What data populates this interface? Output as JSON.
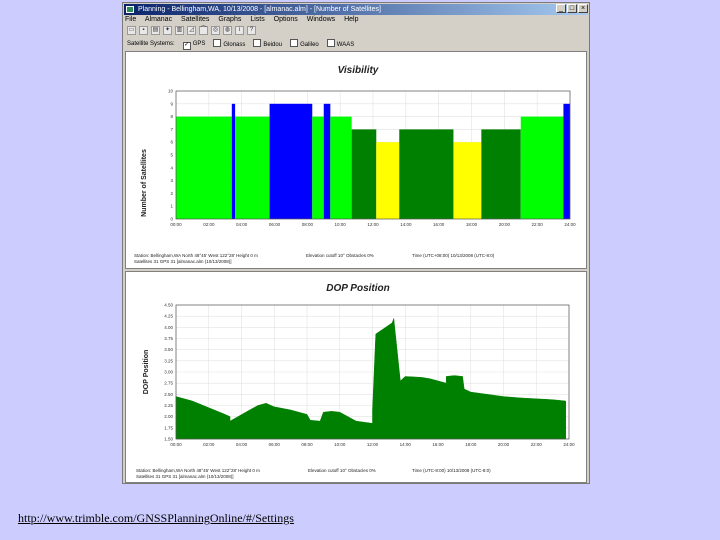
{
  "window": {
    "title": "Planning - Bellingham,WA, 10/13/2008 - [almanac.alm] - [Number of Satellites]"
  },
  "menu": [
    "File",
    "Almanac",
    "Satellites",
    "Graphs",
    "Lists",
    "Options",
    "Windows",
    "Help"
  ],
  "toolbar_icons": [
    "open-icon",
    "save-icon",
    "print-icon",
    "satellite-icon",
    "plot-icon",
    "dop-icon",
    "elevation-icon",
    "skyplot-icon",
    "world-icon",
    "info-icon",
    "help-icon"
  ],
  "filter": {
    "label": "Satellite Systems:",
    "options": [
      {
        "label": "GPS",
        "checked": true
      },
      {
        "label": "Glonass",
        "checked": false
      },
      {
        "label": "Beidou",
        "checked": false
      },
      {
        "label": "Galileo",
        "checked": false
      },
      {
        "label": "WAAS",
        "checked": false
      }
    ]
  },
  "visibility_info": {
    "line1_left": "Station: Bellingham,WA  North 48°45'  West 122°28'  Height 0 m",
    "line1_mid": "Elevation cutoff 10°  Obstacles 0%",
    "line1_right": "Time (UTC+08:00)  10/13/2008 (UTC-8:0)",
    "line2": "Satellites 31  GPS 31  [almanac.alm (10/13/2008)]"
  },
  "dop_info": {
    "line1_left": "Station: Bellingham,WA  North 48°45'  West 122°28'  Height 0 m",
    "line1_mid": "Elevation cutoff 10°  Obstacles 0%",
    "line1_right": "Time (UTC-8:00)  10/13/2008 (UTC-8:0)",
    "line2": "Satellites 31  GPS 31  [almanac.alm (10/13/2008)]"
  },
  "url": "http://www.trimble.com/GNSSPlanningOnline/#/Settings",
  "chart_data": [
    {
      "type": "bar",
      "title": "Visibility",
      "ylabel": "Number of Satellites",
      "xlabel": "",
      "ylim": [
        0,
        10
      ],
      "yticks": [
        0,
        1,
        2,
        3,
        4,
        5,
        6,
        7,
        8,
        9,
        10
      ],
      "xlim": [
        0,
        24
      ],
      "xticks": [
        "00:00",
        "02:00",
        "04:00",
        "06:00",
        "08:00",
        "10:00",
        "12:00",
        "14:00",
        "16:00",
        "18:00",
        "20:00",
        "22:00",
        "24:00"
      ],
      "grid": true,
      "segments": [
        {
          "start": 0,
          "end": 3.4,
          "value": 8
        },
        {
          "start": 3.4,
          "end": 3.6,
          "value": 9
        },
        {
          "start": 3.6,
          "end": 5.7,
          "value": 8
        },
        {
          "start": 5.7,
          "end": 8.3,
          "value": 9
        },
        {
          "start": 8.3,
          "end": 9.0,
          "value": 8
        },
        {
          "start": 9.0,
          "end": 9.4,
          "value": 9
        },
        {
          "start": 9.4,
          "end": 10.7,
          "value": 8
        },
        {
          "start": 10.7,
          "end": 12.2,
          "value": 7
        },
        {
          "start": 12.2,
          "end": 13.6,
          "value": 6
        },
        {
          "start": 13.6,
          "end": 16.9,
          "value": 7
        },
        {
          "start": 16.9,
          "end": 18.6,
          "value": 6
        },
        {
          "start": 18.6,
          "end": 21.0,
          "value": 7
        },
        {
          "start": 21.0,
          "end": 23.6,
          "value": 8
        },
        {
          "start": 23.6,
          "end": 24.0,
          "value": 9
        }
      ],
      "colors": {
        "6": "#ffff00",
        "7": "#008000",
        "8": "#00ff00",
        "9": "#0000ff"
      }
    },
    {
      "type": "area",
      "title": "DOP Position",
      "ylabel": "DOP Position",
      "xlabel": "",
      "ylim": [
        1.5,
        4.5
      ],
      "yticks": [
        1.5,
        1.75,
        2.0,
        2.25,
        2.5,
        2.75,
        3.0,
        3.25,
        3.5,
        3.75,
        4.0,
        4.25,
        4.5
      ],
      "ytick_labels": [
        "1.50",
        "1.75",
        "2.00",
        "2.25",
        "2.50",
        "2.75",
        "3.00",
        "3.25",
        "3.50",
        "3.75",
        "4.00",
        "4.25",
        "4.50"
      ],
      "xlim": [
        0,
        24
      ],
      "xticks": [
        "00:00",
        "02:00",
        "04:00",
        "06:00",
        "08:00",
        "10:00",
        "12:00",
        "14:00",
        "16:00",
        "18:00",
        "20:00",
        "22:00",
        "24:00"
      ],
      "grid": true,
      "color": "#008000",
      "x": [
        0,
        1.0,
        2.0,
        3.0,
        3.3,
        3.3,
        4.5,
        5.0,
        5.5,
        6.0,
        7.0,
        8.0,
        8.2,
        8.8,
        9.0,
        9.5,
        10.0,
        10.5,
        11.0,
        12.0,
        12.0,
        12.2,
        13.2,
        13.3,
        13.7,
        14.0,
        15.0,
        15.5,
        16.0,
        16.5,
        16.5,
        17.0,
        17.5,
        17.6,
        18.0,
        19.0,
        20.0,
        21.0,
        22.0,
        23.0,
        23.8,
        23.8
      ],
      "y": [
        2.45,
        2.35,
        2.2,
        2.05,
        2.0,
        1.9,
        2.15,
        2.25,
        2.3,
        2.22,
        2.15,
        2.05,
        1.92,
        1.9,
        2.1,
        2.12,
        2.1,
        2.0,
        1.9,
        1.85,
        2.15,
        3.85,
        4.1,
        4.2,
        2.8,
        2.9,
        2.88,
        2.85,
        2.8,
        2.75,
        2.9,
        2.92,
        2.9,
        2.62,
        2.55,
        2.5,
        2.45,
        2.42,
        2.4,
        2.38,
        2.35,
        1.7
      ]
    }
  ]
}
